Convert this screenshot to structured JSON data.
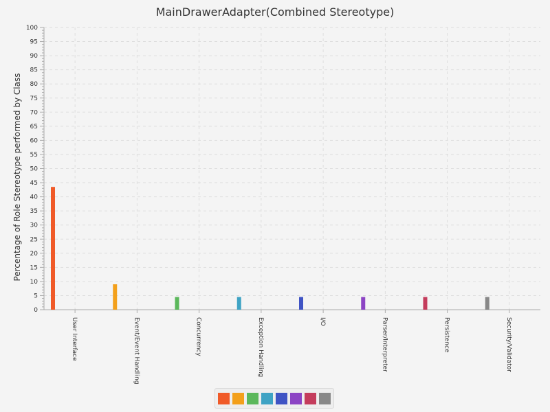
{
  "chart_data": {
    "type": "bar",
    "title": "MainDrawerAdapter(Combined Stereotype)",
    "xlabel": "",
    "ylabel": "Percentage of Role Stereotype performed by Class",
    "ylim": [
      0,
      100
    ],
    "ytick_step": 5,
    "grid": true,
    "legend_position": "bottom",
    "categories": [
      "User Interface",
      "Event/Event Handling",
      "Concurrency",
      "Exception Handling",
      "I/O",
      "Parser/Interpreter",
      "Persistence",
      "Security/Validator"
    ],
    "values": [
      43.5,
      9,
      4.5,
      4.5,
      4.5,
      4.5,
      4.5,
      4.5
    ],
    "colors": [
      "#f05a28",
      "#f3a01b",
      "#5cb85c",
      "#3fa3c4",
      "#4054c4",
      "#8c44c4",
      "#c43c5c",
      "#888888"
    ]
  }
}
